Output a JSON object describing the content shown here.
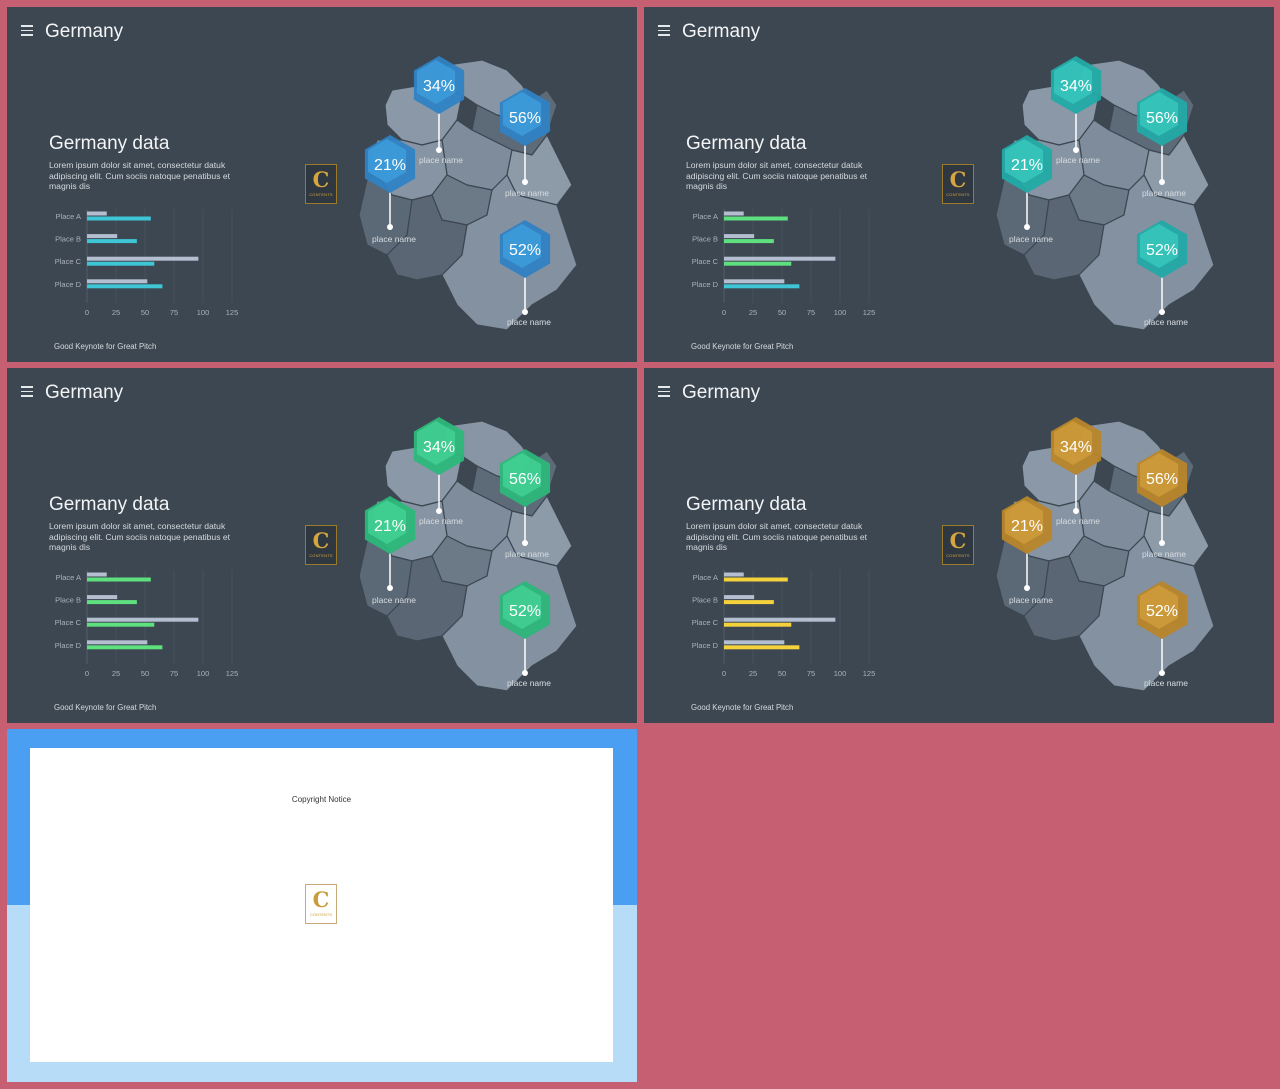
{
  "slide_common": {
    "title": "Germany",
    "data_title": "Germany data",
    "description": "Lorem ipsum dolor sit amet, consectetur datuk adipiscing elit. Cum sociis natoque penatibus et magnis dis",
    "footer": "Good Keynote for Great Pitch",
    "logo_letter": "C",
    "logo_text": "CONTENTS"
  },
  "themes": [
    {
      "name": "blue",
      "accent": "#3ec6d6",
      "hex_light": "#43a9e4",
      "hex_dark": "#2f82c4"
    },
    {
      "name": "teal",
      "accent": "#5ee07f",
      "accent2": "#3ec6d6",
      "hex_light": "#3fd3c6",
      "hex_dark": "#22aaa6"
    },
    {
      "name": "green",
      "accent": "#5ee07f",
      "hex_light": "#4bdc9f",
      "hex_dark": "#2cb77a"
    },
    {
      "name": "gold",
      "accent": "#f5d13b",
      "hex_light": "#d9a740",
      "hex_dark": "#b8852a"
    }
  ],
  "chart_data": {
    "type": "bar",
    "categories": [
      "Place A",
      "Place B",
      "Place C",
      "Place D"
    ],
    "series": [
      {
        "values": [
          17,
          26,
          96,
          52
        ]
      },
      {
        "values": [
          55,
          43,
          58,
          65
        ]
      }
    ],
    "xlim": [
      0,
      125
    ],
    "xticks": [
      "0",
      "25",
      "50",
      "75",
      "100",
      "125"
    ]
  },
  "markers": [
    {
      "value": "34%",
      "label": "place name"
    },
    {
      "value": "56%",
      "label": "place name"
    },
    {
      "value": "21%",
      "label": "place name"
    },
    {
      "value": "52%",
      "label": "place name"
    }
  ],
  "copyright": {
    "title": "Copyright Notice",
    "logo_letter": "C",
    "logo_text": "CONTENTS"
  }
}
